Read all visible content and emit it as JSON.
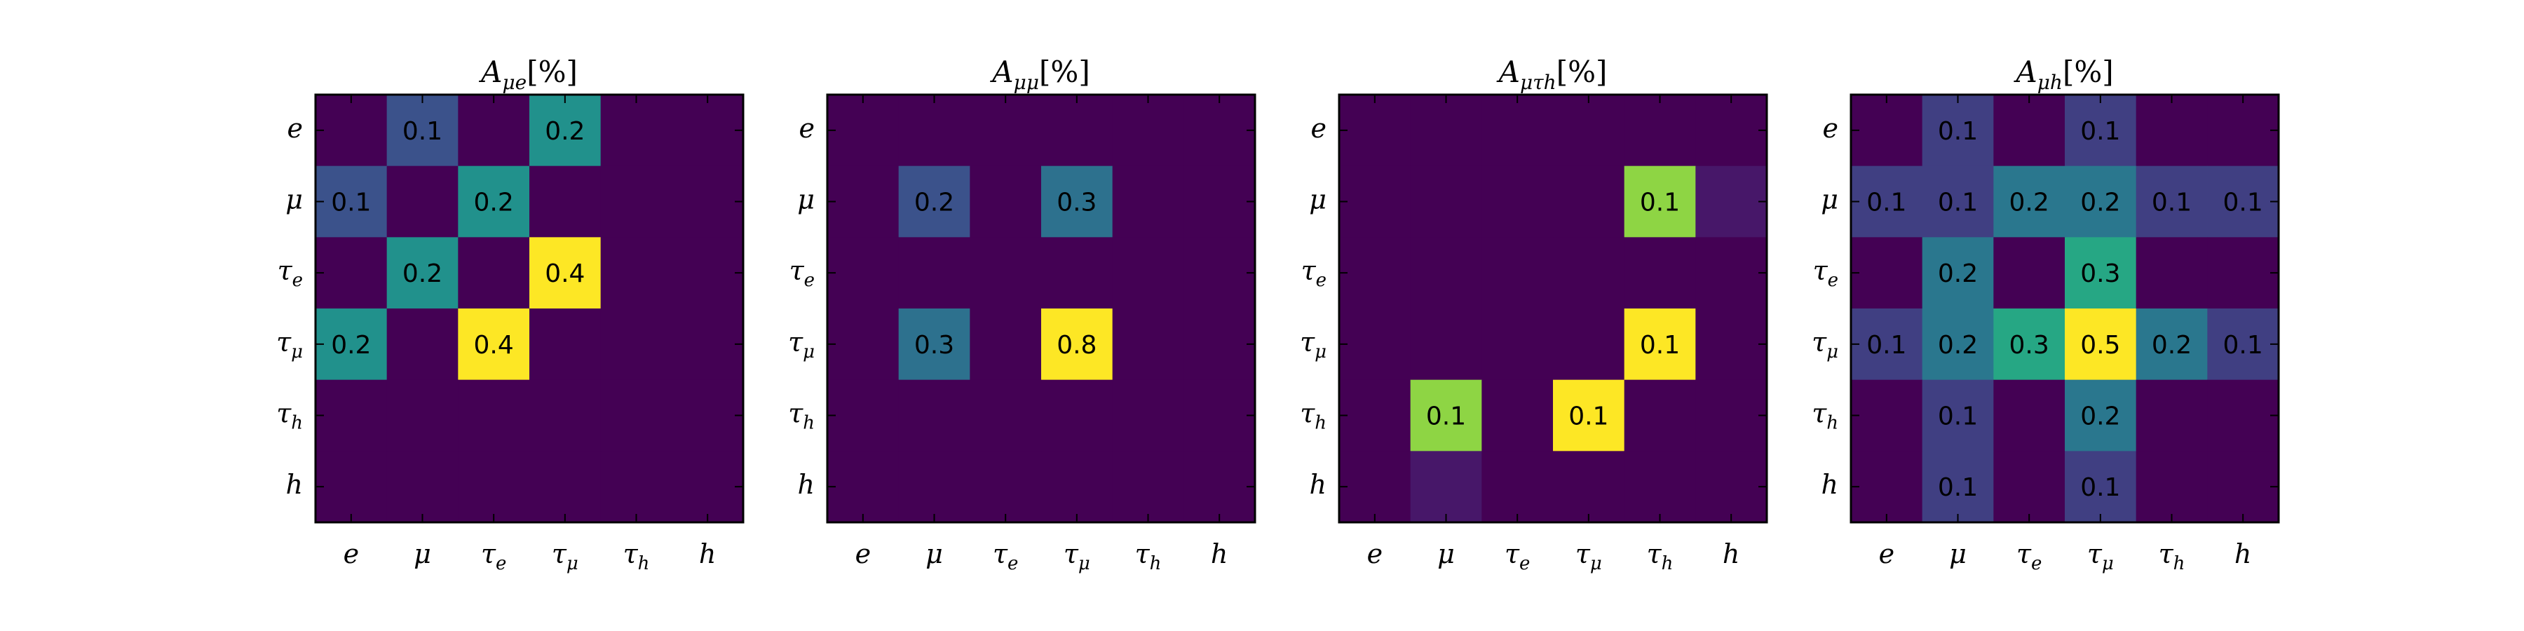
{
  "chart_data": [
    {
      "type": "heatmap",
      "title": "A_{μe}[%]",
      "title_main": "A",
      "title_sub": "μe",
      "title_unit": "[%]",
      "x_categories": [
        "e",
        "μ",
        "τ_e",
        "τ_μ",
        "τ_h",
        "h"
      ],
      "y_categories": [
        "e",
        "μ",
        "τ_e",
        "τ_μ",
        "τ_h",
        "h"
      ],
      "values": [
        [
          0,
          0.1,
          0,
          0.2,
          0,
          0
        ],
        [
          0.1,
          0,
          0.2,
          0,
          0,
          0
        ],
        [
          0,
          0.2,
          0,
          0.4,
          0,
          0
        ],
        [
          0.2,
          0,
          0.4,
          0,
          0,
          0
        ],
        [
          0,
          0,
          0,
          0,
          0,
          0
        ],
        [
          0,
          0,
          0,
          0,
          0,
          0
        ]
      ],
      "labels": [
        [
          "",
          "0.1",
          "",
          "0.2",
          "",
          ""
        ],
        [
          "0.1",
          "",
          "0.2",
          "",
          "",
          ""
        ],
        [
          "",
          "0.2",
          "",
          "0.4",
          "",
          ""
        ],
        [
          "0.2",
          "",
          "0.4",
          "",
          "",
          ""
        ],
        [
          "",
          "",
          "",
          "",
          "",
          ""
        ],
        [
          "",
          "",
          "",
          "",
          "",
          ""
        ]
      ],
      "vmax": 0.4,
      "colormap": "viridis",
      "show_x_ticklabels": true
    },
    {
      "type": "heatmap",
      "title": "A_{μμ}[%]",
      "title_main": "A",
      "title_sub": "μμ",
      "title_unit": "[%]",
      "x_categories": [
        "e",
        "μ",
        "τ_e",
        "τ_μ",
        "τ_h",
        "h"
      ],
      "y_categories": [
        "e",
        "μ",
        "τ_e",
        "τ_μ",
        "τ_h",
        "h"
      ],
      "values": [
        [
          0,
          0,
          0,
          0,
          0,
          0
        ],
        [
          0,
          0.2,
          0,
          0.3,
          0,
          0
        ],
        [
          0,
          0,
          0,
          0,
          0,
          0
        ],
        [
          0,
          0.3,
          0,
          0.8,
          0,
          0
        ],
        [
          0,
          0,
          0,
          0,
          0,
          0
        ],
        [
          0,
          0,
          0,
          0,
          0,
          0
        ]
      ],
      "labels": [
        [
          "",
          "",
          "",
          "",
          "",
          ""
        ],
        [
          "",
          "0.2",
          "",
          "0.3",
          "",
          ""
        ],
        [
          "",
          "",
          "",
          "",
          "",
          ""
        ],
        [
          "",
          "0.3",
          "",
          "0.8",
          "",
          ""
        ],
        [
          "",
          "",
          "",
          "",
          "",
          ""
        ],
        [
          "",
          "",
          "",
          "",
          "",
          ""
        ]
      ],
      "vmax": 0.8,
      "colormap": "viridis",
      "show_x_ticklabels": true
    },
    {
      "type": "heatmap",
      "title": "A_{μτ_h}[%]",
      "title_main": "A",
      "title_sub": "μτh",
      "title_unit": "[%]",
      "x_categories": [
        "e",
        "μ",
        "τ_e",
        "τ_μ",
        "τ_h",
        "h"
      ],
      "y_categories": [
        "e",
        "μ",
        "τ_e",
        "τ_μ",
        "τ_h",
        "h"
      ],
      "values": [
        [
          0,
          0,
          0,
          0,
          0,
          0
        ],
        [
          0,
          0,
          0,
          0,
          0.1,
          0.01
        ],
        [
          0,
          0,
          0,
          0,
          0,
          0
        ],
        [
          0,
          0,
          0,
          0,
          0.12,
          0
        ],
        [
          0,
          0.1,
          0,
          0.12,
          0,
          0
        ],
        [
          0,
          0.01,
          0,
          0,
          0,
          0
        ]
      ],
      "labels": [
        [
          "",
          "",
          "",
          "",
          "",
          ""
        ],
        [
          "",
          "",
          "",
          "",
          "0.1",
          ""
        ],
        [
          "",
          "",
          "",
          "",
          "",
          ""
        ],
        [
          "",
          "",
          "",
          "",
          "0.1",
          ""
        ],
        [
          "",
          "0.1",
          "",
          "0.1",
          "",
          ""
        ],
        [
          "",
          "",
          "",
          "",
          "",
          ""
        ]
      ],
      "vmax": 0.12,
      "colormap": "viridis",
      "show_x_ticklabels": true
    },
    {
      "type": "heatmap",
      "title": "A_{μh}[%]",
      "title_main": "A",
      "title_sub": "μh",
      "title_unit": "[%]",
      "x_categories": [
        "e",
        "μ",
        "τ_e",
        "τ_μ",
        "τ_h",
        "h"
      ],
      "y_categories": [
        "e",
        "μ",
        "τ_e",
        "τ_μ",
        "τ_h",
        "h"
      ],
      "values": [
        [
          0,
          0.1,
          0,
          0.1,
          0,
          0
        ],
        [
          0.1,
          0.1,
          0.2,
          0.2,
          0.1,
          0.1
        ],
        [
          0,
          0.2,
          0,
          0.3,
          0,
          0
        ],
        [
          0.1,
          0.2,
          0.3,
          0.5,
          0.2,
          0.1
        ],
        [
          0,
          0.1,
          0,
          0.2,
          0,
          0
        ],
        [
          0,
          0.1,
          0,
          0.1,
          0,
          0
        ]
      ],
      "labels": [
        [
          "",
          "0.1",
          "",
          "0.1",
          "",
          ""
        ],
        [
          "0.1",
          "0.1",
          "0.2",
          "0.2",
          "0.1",
          "0.1"
        ],
        [
          "",
          "0.2",
          "",
          "0.3",
          "",
          ""
        ],
        [
          "0.1",
          "0.2",
          "0.3",
          "0.5",
          "0.2",
          "0.1"
        ],
        [
          "",
          "0.1",
          "",
          "0.2",
          "",
          ""
        ],
        [
          "",
          "0.1",
          "",
          "0.1",
          "",
          ""
        ]
      ],
      "vmax": 0.5,
      "colormap": "viridis",
      "show_x_ticklabels": true
    }
  ]
}
